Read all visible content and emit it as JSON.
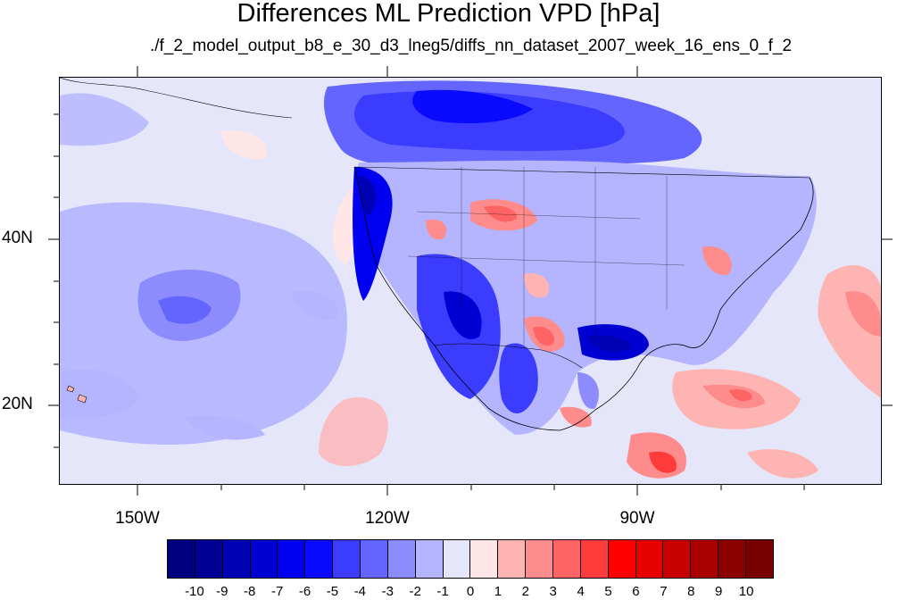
{
  "title": "Differences ML Prediction VPD [hPa]",
  "subtitle": "./f_2_model_output_b8_e_30_d3_lneg5/diffs_nn_dataset_2007_week_16_ens_0_f_2",
  "map": {
    "lon_range": [
      -160,
      -62
    ],
    "lat_range": [
      10.5,
      59.5
    ],
    "lon_labels": [
      "150W",
      "120W",
      "90W"
    ],
    "lat_labels": [
      "40N",
      "20N"
    ],
    "background_color": "#e6e8f8"
  },
  "colorbar": {
    "colors": [
      "#00007f",
      "#000096",
      "#0000b4",
      "#0000d2",
      "#0000f0",
      "#0a0aff",
      "#3c3cff",
      "#6464ff",
      "#8c8cff",
      "#b4b4ff",
      "#e6e6fa",
      "#ffe6e6",
      "#ffb4b4",
      "#ff8c8c",
      "#ff6464",
      "#ff3c3c",
      "#ff0000",
      "#e60000",
      "#c80000",
      "#aa0000",
      "#8c0000",
      "#780000"
    ],
    "labels": [
      "-10",
      "-9",
      "-8",
      "-7",
      "-6",
      "-5",
      "-4",
      "-3",
      "-2",
      "-1",
      "0",
      "1",
      "2",
      "3",
      "4",
      "5",
      "6",
      "7",
      "8",
      "9",
      "10"
    ]
  }
}
